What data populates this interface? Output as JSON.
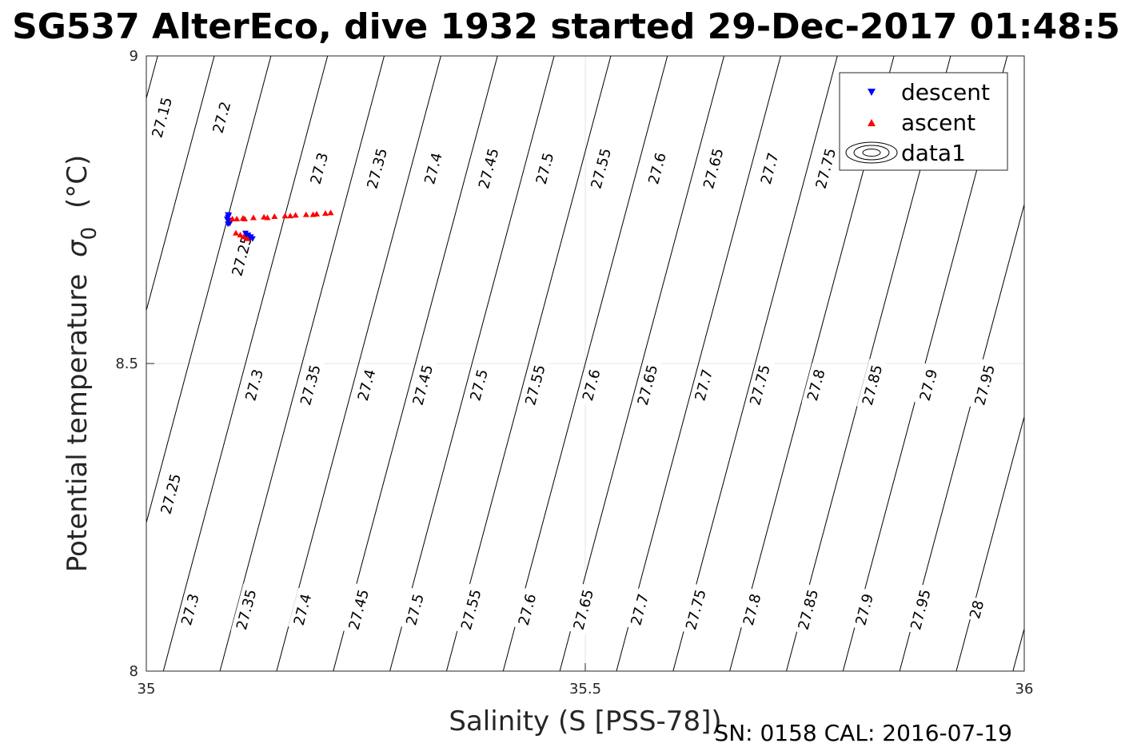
{
  "chart_data": {
    "type": "scatter",
    "title": "SG537 AlterEco, dive 1932 started 29-Dec-2017 01:48:5",
    "xlabel": "Salinity (S [PSS-78])",
    "ylabel": "Potential temperature",
    "ylabel_symbol": "σ",
    "ylabel_subscript": "0",
    "ylabel_unit": "(°C)",
    "footer": "SN: 0158  CAL: 2016-07-19",
    "xlim": [
      35,
      36
    ],
    "ylim": [
      8,
      9
    ],
    "xticks": [
      35,
      35.5,
      36
    ],
    "xtick_labels": [
      "35",
      "35.5",
      "36"
    ],
    "yticks": [
      8,
      8.5,
      9
    ],
    "ytick_labels": [
      "8",
      "8.5",
      "9"
    ],
    "grid": true,
    "legend": {
      "position": "top-right",
      "entries": [
        {
          "label": "descent",
          "marker": "triangle-down",
          "color": "#0000ff"
        },
        {
          "label": "ascent",
          "marker": "triangle-up",
          "color": "#ff0000"
        },
        {
          "label": "data1",
          "marker": "contour",
          "color": "#000000"
        }
      ]
    },
    "series": [
      {
        "name": "descent",
        "color": "#0000ff",
        "marker": "triangle-down",
        "points": [
          [
            35.093,
            8.742
          ],
          [
            35.094,
            8.741
          ],
          [
            35.093,
            8.738
          ],
          [
            35.092,
            8.735
          ],
          [
            35.093,
            8.732
          ],
          [
            35.094,
            8.73
          ],
          [
            35.093,
            8.727
          ],
          [
            35.095,
            8.728
          ],
          [
            35.096,
            8.733
          ],
          [
            35.113,
            8.712
          ],
          [
            35.116,
            8.709
          ],
          [
            35.119,
            8.706
          ],
          [
            35.121,
            8.703
          ],
          [
            35.117,
            8.706
          ],
          [
            35.114,
            8.709
          ]
        ]
      },
      {
        "name": "ascent",
        "color": "#ff0000",
        "marker": "triangle-up",
        "points": [
          [
            35.098,
            8.735
          ],
          [
            35.11,
            8.736
          ],
          [
            35.122,
            8.737
          ],
          [
            35.134,
            8.738
          ],
          [
            35.146,
            8.739
          ],
          [
            35.158,
            8.74
          ],
          [
            35.17,
            8.741
          ],
          [
            35.182,
            8.742
          ],
          [
            35.194,
            8.743
          ],
          [
            35.204,
            8.744
          ],
          [
            35.21,
            8.745
          ],
          [
            35.19,
            8.742
          ],
          [
            35.164,
            8.74
          ],
          [
            35.138,
            8.737
          ],
          [
            35.112,
            8.735
          ],
          [
            35.103,
            8.735
          ],
          [
            35.102,
            8.712
          ],
          [
            35.107,
            8.709
          ],
          [
            35.111,
            8.706
          ],
          [
            35.115,
            8.703
          ]
        ]
      }
    ],
    "isopycnals": {
      "name": "data1",
      "color": "#000000",
      "sigma_ref": 27.6,
      "dsigma_dS": 0.775,
      "dsigma_dT": -0.145,
      "t_ref": 8.5,
      "s_ref": 35.5,
      "levels": [
        27.15,
        27.2,
        27.25,
        27.3,
        27.35,
        27.4,
        27.45,
        27.5,
        27.55,
        27.6,
        27.65,
        27.7,
        27.75,
        27.8,
        27.85,
        27.9,
        27.95,
        28
      ],
      "labels": [
        {
          "text": "27.15",
          "s": 35.018,
          "t": 8.9
        },
        {
          "text": "27.2",
          "s": 35.086,
          "t": 8.9
        },
        {
          "text": "27.3",
          "s": 35.197,
          "t": 8.817
        },
        {
          "text": "27.35",
          "s": 35.263,
          "t": 8.817
        },
        {
          "text": "27.4",
          "s": 35.327,
          "t": 8.817
        },
        {
          "text": "27.45",
          "s": 35.39,
          "t": 8.817
        },
        {
          "text": "27.5",
          "s": 35.454,
          "t": 8.817
        },
        {
          "text": "27.55",
          "s": 35.518,
          "t": 8.817
        },
        {
          "text": "27.6",
          "s": 35.582,
          "t": 8.817
        },
        {
          "text": "27.65",
          "s": 35.646,
          "t": 8.817
        },
        {
          "text": "27.7",
          "s": 35.71,
          "t": 8.817
        },
        {
          "text": "27.75",
          "s": 35.774,
          "t": 8.817
        },
        {
          "text": "27.25",
          "s": 35.109,
          "t": 8.675
        },
        {
          "text": "27.3",
          "s": 35.123,
          "t": 8.465
        },
        {
          "text": "27.35",
          "s": 35.187,
          "t": 8.465
        },
        {
          "text": "27.4",
          "s": 35.251,
          "t": 8.465
        },
        {
          "text": "27.45",
          "s": 35.315,
          "t": 8.465
        },
        {
          "text": "27.5",
          "s": 35.379,
          "t": 8.465
        },
        {
          "text": "27.55",
          "s": 35.443,
          "t": 8.465
        },
        {
          "text": "27.6",
          "s": 35.507,
          "t": 8.465
        },
        {
          "text": "27.65",
          "s": 35.571,
          "t": 8.465
        },
        {
          "text": "27.7",
          "s": 35.635,
          "t": 8.465
        },
        {
          "text": "27.75",
          "s": 35.699,
          "t": 8.465
        },
        {
          "text": "27.8",
          "s": 35.763,
          "t": 8.465
        },
        {
          "text": "27.85",
          "s": 35.827,
          "t": 8.465
        },
        {
          "text": "27.9",
          "s": 35.891,
          "t": 8.465
        },
        {
          "text": "27.95",
          "s": 35.955,
          "t": 8.465
        },
        {
          "text": "27.25",
          "s": 35.028,
          "t": 8.288
        },
        {
          "text": "27.3",
          "s": 35.05,
          "t": 8.1
        },
        {
          "text": "27.35",
          "s": 35.114,
          "t": 8.1
        },
        {
          "text": "27.4",
          "s": 35.178,
          "t": 8.1
        },
        {
          "text": "27.45",
          "s": 35.242,
          "t": 8.1
        },
        {
          "text": "27.5",
          "s": 35.306,
          "t": 8.1
        },
        {
          "text": "27.55",
          "s": 35.37,
          "t": 8.1
        },
        {
          "text": "27.6",
          "s": 35.434,
          "t": 8.1
        },
        {
          "text": "27.65",
          "s": 35.498,
          "t": 8.1
        },
        {
          "text": "27.7",
          "s": 35.562,
          "t": 8.1
        },
        {
          "text": "27.75",
          "s": 35.626,
          "t": 8.1
        },
        {
          "text": "27.8",
          "s": 35.69,
          "t": 8.1
        },
        {
          "text": "27.85",
          "s": 35.754,
          "t": 8.1
        },
        {
          "text": "27.9",
          "s": 35.818,
          "t": 8.1
        },
        {
          "text": "27.95",
          "s": 35.882,
          "t": 8.1
        },
        {
          "text": "28",
          "s": 35.946,
          "t": 8.1
        }
      ]
    }
  }
}
